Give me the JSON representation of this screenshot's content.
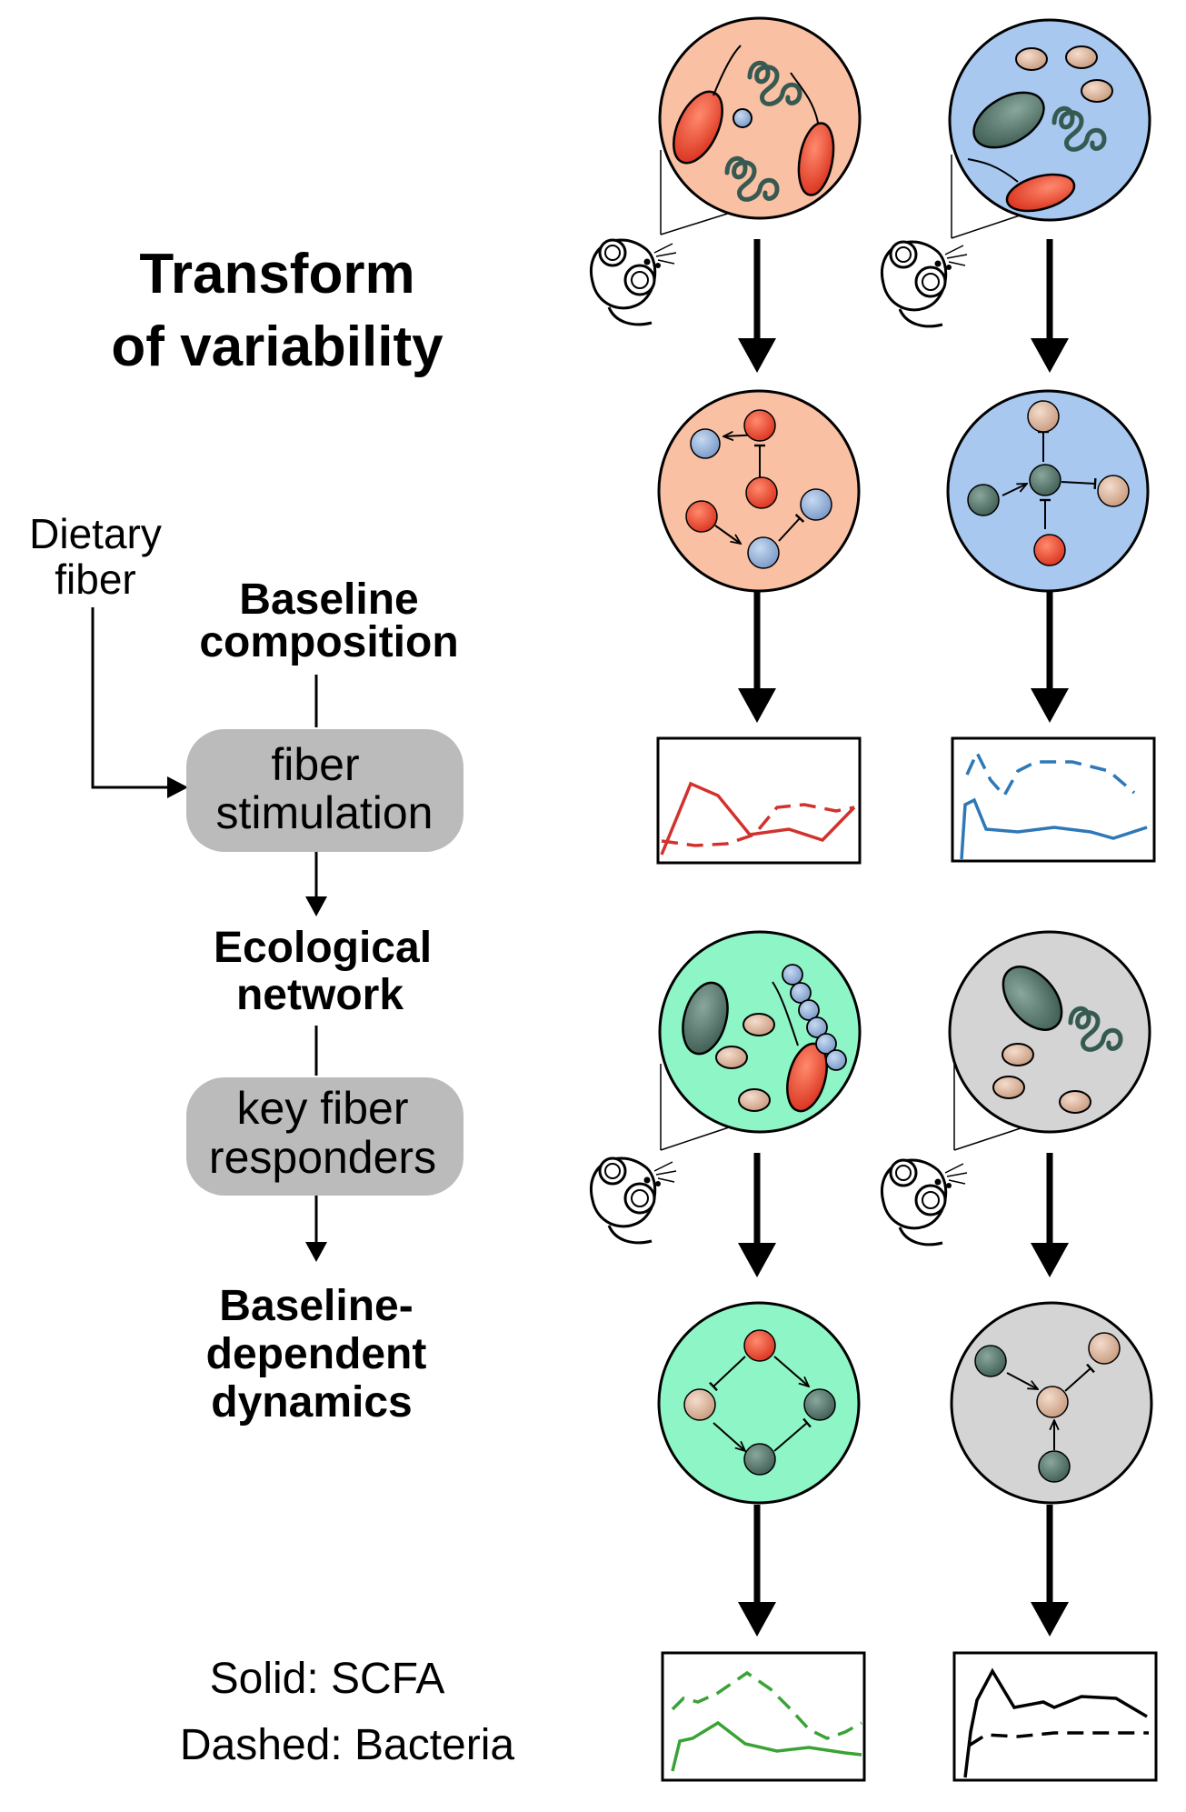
{
  "title": {
    "line1": "Transform",
    "line2": "of variability"
  },
  "input": {
    "line1": "Dietary",
    "line2": "fiber"
  },
  "steps": {
    "baseline_line1": "Baseline",
    "baseline_line2": "composition",
    "fiber_line1": "fiber",
    "fiber_line2": "stimulation",
    "eco_line1": "Ecological",
    "eco_line2": "network",
    "key_line1": "key fiber",
    "key_line2": "responders",
    "dyn_line1": "Baseline-",
    "dyn_line2": "dependent",
    "dyn_line3": "dynamics"
  },
  "legend": {
    "solid": "Solid: SCFA",
    "dashed": "Dashed: Bacteria"
  },
  "colors": {
    "orange_bg": "#f9c0a4",
    "blue_bg": "#a8c8f0",
    "green_bg": "#8ef5c6",
    "gray_bg": "#d4d4d4",
    "red_bacteria": "#e8452e",
    "blue_node": "#8cabd4",
    "tan_node": "#dbb59c",
    "dark_teal": "#4b6a60",
    "pill_gray": "#bbbbbb",
    "line_red": "#d2322d",
    "line_blue": "#2e78b7",
    "line_green": "#3aa335",
    "line_black": "#000000"
  }
}
